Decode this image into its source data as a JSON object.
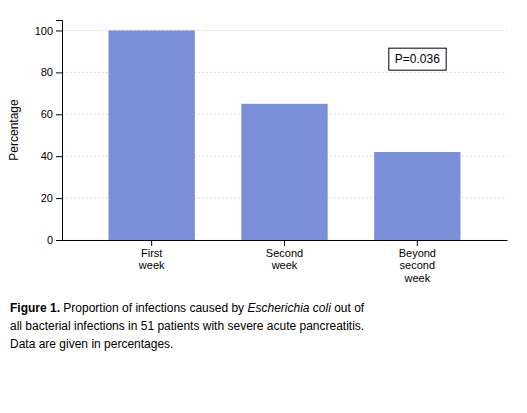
{
  "chart_data": {
    "type": "bar",
    "categories": [
      "First\nweek",
      "Second\nweek",
      "Beyond\nsecond\nweek"
    ],
    "values": [
      100,
      65,
      42
    ],
    "color": "#7B8FD8",
    "ylabel": "Percentage",
    "ylim": [
      0,
      105
    ],
    "yticks": [
      0,
      20,
      40,
      60,
      80,
      100
    ],
    "grid": true,
    "annotations": [
      "P=0.036"
    ],
    "caption": [
      [
        "Figure 1.",
        " Proportion of infections caused by ",
        "Escherichia coli",
        " out of"
      ],
      [
        "all bacterial infections in 51 patients with severe acute pancreatitis."
      ],
      [
        "Data are given in percentages."
      ]
    ]
  }
}
